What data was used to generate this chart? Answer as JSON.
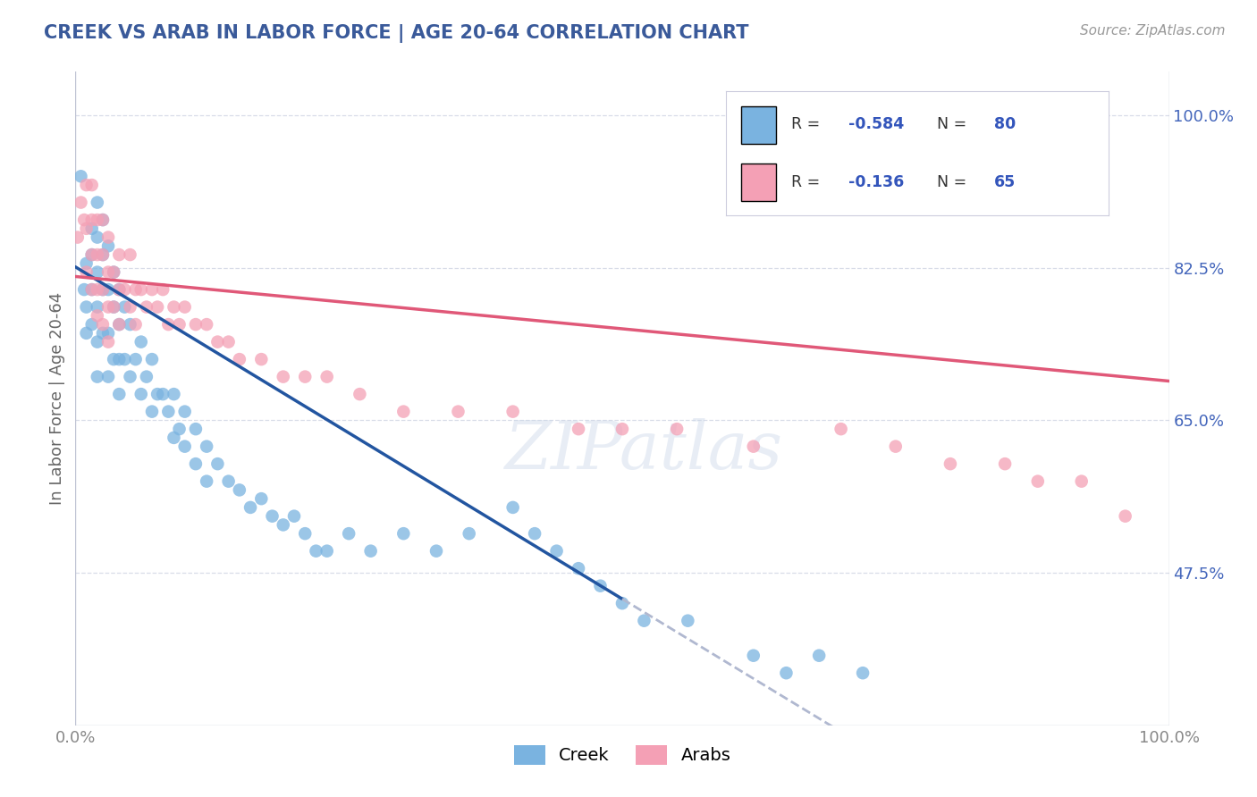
{
  "title": "CREEK VS ARAB IN LABOR FORCE | AGE 20-64 CORRELATION CHART",
  "source": "Source: ZipAtlas.com",
  "ylabel": "In Labor Force | Age 20-64",
  "xlim": [
    0.0,
    1.0
  ],
  "ylim": [
    0.3,
    1.05
  ],
  "yticks": [
    0.475,
    0.65,
    0.825,
    1.0
  ],
  "ytick_labels": [
    "47.5%",
    "65.0%",
    "82.5%",
    "100.0%"
  ],
  "xtick_labels": [
    "0.0%",
    "100.0%"
  ],
  "xticks": [
    0.0,
    1.0
  ],
  "creek_R": -0.584,
  "creek_N": 80,
  "arab_R": -0.136,
  "arab_N": 65,
  "creek_color": "#7ab3e0",
  "arab_color": "#f4a0b5",
  "creek_line_color": "#2255a0",
  "arab_line_color": "#e05878",
  "dashed_line_color": "#b0b8d0",
  "background_color": "#ffffff",
  "grid_color": "#d8dce8",
  "title_color": "#3a5a9a",
  "source_color": "#999999",
  "axis_color": "#c0c4d4",
  "legend_label_creek": "Creek",
  "legend_label_arab": "Arabs",
  "creek_line_x0": 0.0,
  "creek_line_y0": 0.826,
  "creek_line_x1": 0.5,
  "creek_line_y1": 0.445,
  "arab_line_x0": 0.0,
  "arab_line_y0": 0.815,
  "arab_line_x1": 1.0,
  "arab_line_y1": 0.695,
  "creek_x": [
    0.005,
    0.008,
    0.01,
    0.01,
    0.01,
    0.015,
    0.015,
    0.015,
    0.015,
    0.02,
    0.02,
    0.02,
    0.02,
    0.02,
    0.02,
    0.025,
    0.025,
    0.025,
    0.025,
    0.03,
    0.03,
    0.03,
    0.03,
    0.035,
    0.035,
    0.035,
    0.04,
    0.04,
    0.04,
    0.04,
    0.045,
    0.045,
    0.05,
    0.05,
    0.055,
    0.06,
    0.06,
    0.065,
    0.07,
    0.07,
    0.075,
    0.08,
    0.085,
    0.09,
    0.09,
    0.095,
    0.1,
    0.1,
    0.11,
    0.11,
    0.12,
    0.12,
    0.13,
    0.14,
    0.15,
    0.16,
    0.17,
    0.18,
    0.19,
    0.2,
    0.21,
    0.22,
    0.23,
    0.25,
    0.27,
    0.3,
    0.33,
    0.36,
    0.4,
    0.42,
    0.44,
    0.46,
    0.48,
    0.5,
    0.52,
    0.56,
    0.62,
    0.65,
    0.68,
    0.72
  ],
  "creek_y": [
    0.93,
    0.8,
    0.83,
    0.78,
    0.75,
    0.87,
    0.84,
    0.8,
    0.76,
    0.9,
    0.86,
    0.82,
    0.78,
    0.74,
    0.7,
    0.88,
    0.84,
    0.8,
    0.75,
    0.85,
    0.8,
    0.75,
    0.7,
    0.82,
    0.78,
    0.72,
    0.8,
    0.76,
    0.72,
    0.68,
    0.78,
    0.72,
    0.76,
    0.7,
    0.72,
    0.74,
    0.68,
    0.7,
    0.72,
    0.66,
    0.68,
    0.68,
    0.66,
    0.68,
    0.63,
    0.64,
    0.66,
    0.62,
    0.64,
    0.6,
    0.62,
    0.58,
    0.6,
    0.58,
    0.57,
    0.55,
    0.56,
    0.54,
    0.53,
    0.54,
    0.52,
    0.5,
    0.5,
    0.52,
    0.5,
    0.52,
    0.5,
    0.52,
    0.55,
    0.52,
    0.5,
    0.48,
    0.46,
    0.44,
    0.42,
    0.42,
    0.38,
    0.36,
    0.38,
    0.36
  ],
  "arab_x": [
    0.002,
    0.005,
    0.008,
    0.01,
    0.01,
    0.01,
    0.015,
    0.015,
    0.015,
    0.015,
    0.02,
    0.02,
    0.02,
    0.02,
    0.025,
    0.025,
    0.025,
    0.025,
    0.03,
    0.03,
    0.03,
    0.03,
    0.035,
    0.035,
    0.04,
    0.04,
    0.04,
    0.045,
    0.05,
    0.05,
    0.055,
    0.055,
    0.06,
    0.065,
    0.07,
    0.075,
    0.08,
    0.085,
    0.09,
    0.095,
    0.1,
    0.11,
    0.12,
    0.13,
    0.14,
    0.15,
    0.17,
    0.19,
    0.21,
    0.23,
    0.26,
    0.3,
    0.35,
    0.4,
    0.46,
    0.5,
    0.55,
    0.62,
    0.7,
    0.75,
    0.8,
    0.85,
    0.88,
    0.92,
    0.96
  ],
  "arab_y": [
    0.86,
    0.9,
    0.88,
    0.92,
    0.87,
    0.82,
    0.88,
    0.84,
    0.92,
    0.8,
    0.88,
    0.84,
    0.8,
    0.77,
    0.88,
    0.84,
    0.8,
    0.76,
    0.86,
    0.82,
    0.78,
    0.74,
    0.82,
    0.78,
    0.84,
    0.8,
    0.76,
    0.8,
    0.84,
    0.78,
    0.8,
    0.76,
    0.8,
    0.78,
    0.8,
    0.78,
    0.8,
    0.76,
    0.78,
    0.76,
    0.78,
    0.76,
    0.76,
    0.74,
    0.74,
    0.72,
    0.72,
    0.7,
    0.7,
    0.7,
    0.68,
    0.66,
    0.66,
    0.66,
    0.64,
    0.64,
    0.64,
    0.62,
    0.64,
    0.62,
    0.6,
    0.6,
    0.58,
    0.58,
    0.54
  ]
}
